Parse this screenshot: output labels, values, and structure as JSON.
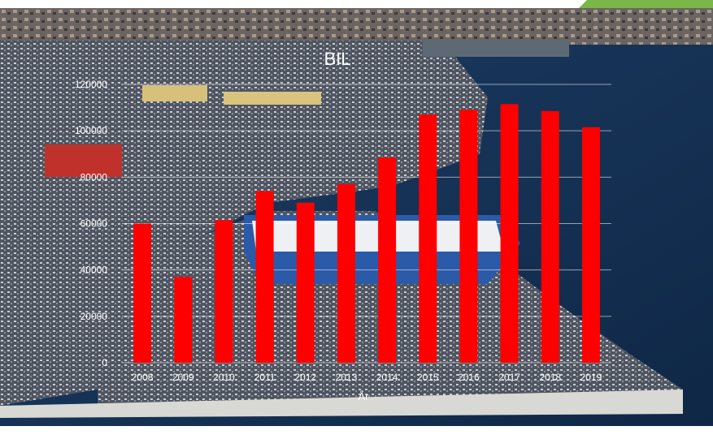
{
  "chart_data": {
    "type": "bar",
    "title": "BIL",
    "xlabel": "År",
    "ylabel": "",
    "categories": [
      "2008",
      "2009",
      "2010",
      "2011",
      "2012",
      "2013",
      "2014",
      "2015",
      "2016",
      "2017",
      "2018",
      "2019"
    ],
    "values": [
      60000,
      37000,
      61500,
      74000,
      69000,
      77000,
      88500,
      107000,
      109000,
      111500,
      108500,
      101500
    ],
    "ylim": [
      0,
      120000
    ],
    "yticks": [
      "0",
      "20000",
      "40000",
      "60000",
      "80000",
      "100000",
      "120000"
    ],
    "grid": true,
    "bar_color": "#ff0000",
    "accent_color": "#7ab648"
  }
}
